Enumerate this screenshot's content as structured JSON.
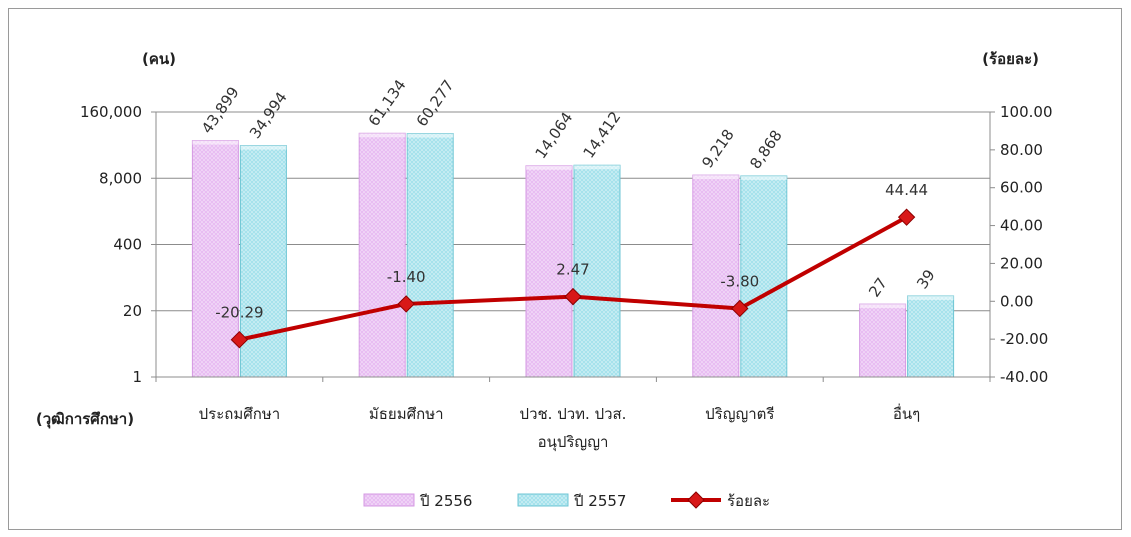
{
  "chart_data": {
    "type": "bar",
    "left_axis_title": "(คน)",
    "right_axis_title": "(ร้อยละ)",
    "xlabel": "(วุฒิการศึกษา)",
    "left_axis": {
      "scale": "log",
      "base": 20,
      "ticks": [
        "1",
        "20",
        "400",
        "8,000",
        "160,000"
      ],
      "tick_values": [
        1,
        20,
        400,
        8000,
        160000
      ]
    },
    "right_axis": {
      "ticks": [
        "-40.00",
        "-20.00",
        "0.00",
        "20.00",
        "40.00",
        "60.00",
        "80.00",
        "100.00"
      ],
      "ylim": [
        -40,
        100
      ]
    },
    "categories": [
      {
        "lines": [
          "ประถมศึกษา"
        ]
      },
      {
        "lines": [
          "มัธยมศึกษา"
        ]
      },
      {
        "lines": [
          "ปวช. ปวท. ปวส.",
          "อนุปริญญา"
        ]
      },
      {
        "lines": [
          "ปริญญาตรี"
        ]
      },
      {
        "lines": [
          "อื่นๆ"
        ]
      }
    ],
    "series": [
      {
        "name": "ปี 2556",
        "type": "bar",
        "axis": "left",
        "values": [
          43899,
          61134,
          14064,
          9218,
          27
        ],
        "labels": [
          "43,899",
          "61,134",
          "14,064",
          "9,218",
          "27"
        ],
        "color": "#e6b8f0"
      },
      {
        "name": "ปี 2557",
        "type": "bar",
        "axis": "left",
        "values": [
          34994,
          60277,
          14412,
          8868,
          39
        ],
        "labels": [
          "34,994",
          "60,277",
          "14,412",
          "8,868",
          "39"
        ],
        "color": "#a8e4ee"
      },
      {
        "name": "ร้อยละ",
        "type": "line",
        "axis": "right",
        "values": [
          -20.29,
          -1.4,
          2.47,
          -3.8,
          44.44
        ],
        "labels": [
          "-20.29",
          "-1.40",
          "2.47",
          "-3.80",
          "44.44"
        ],
        "color": "#c00000"
      }
    ],
    "grid": true,
    "legend_position": "bottom"
  }
}
